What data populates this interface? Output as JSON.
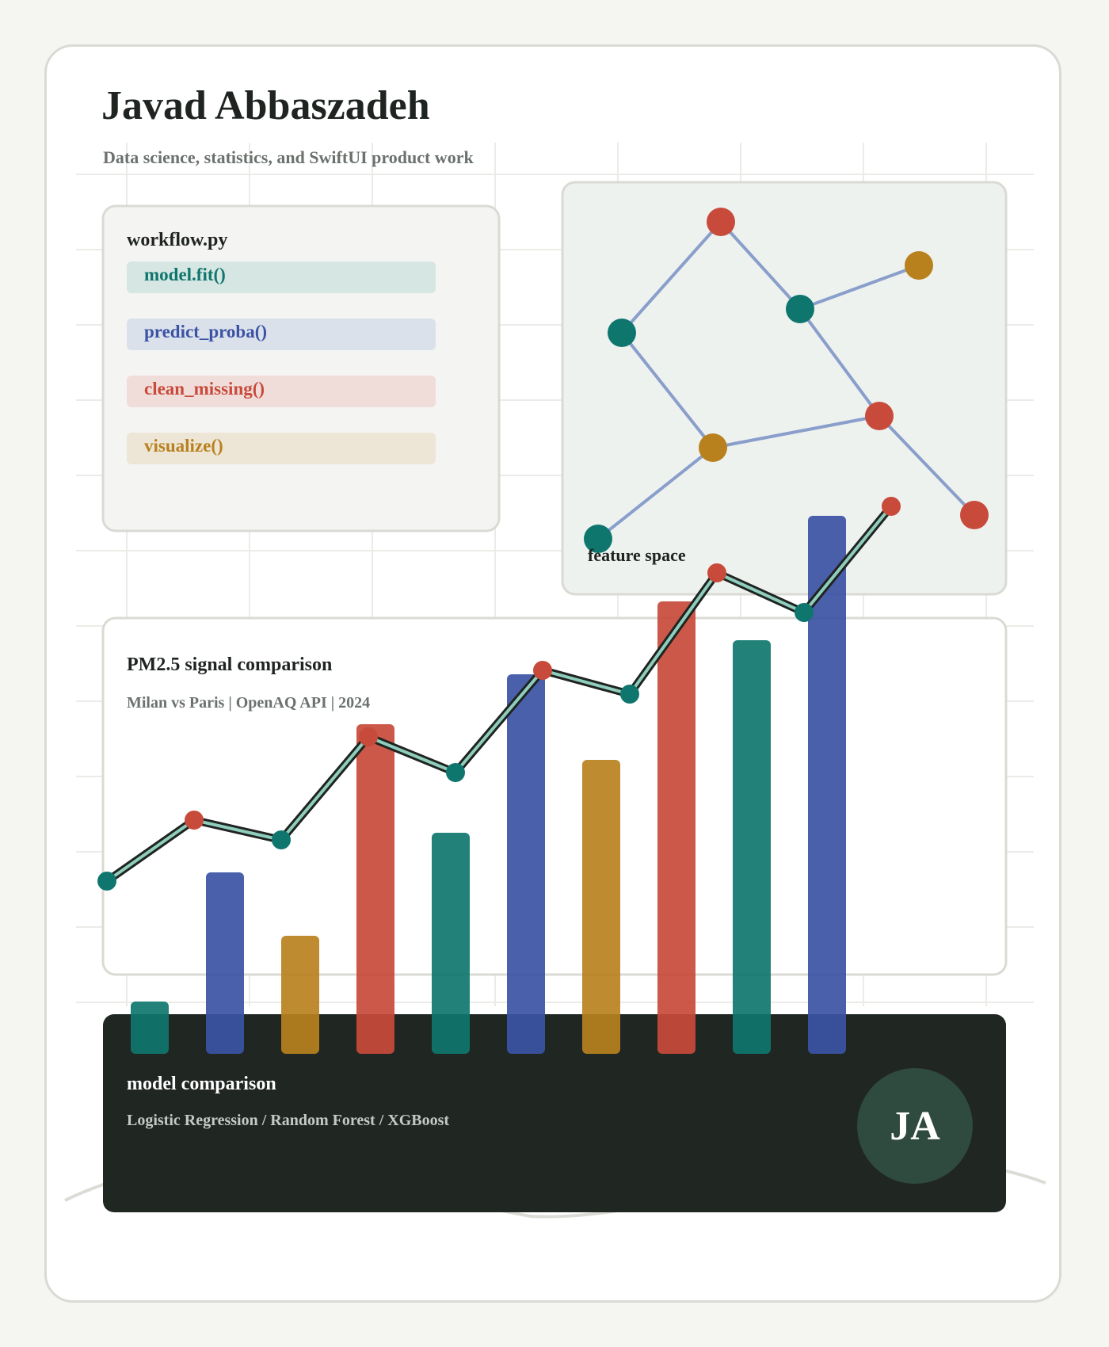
{
  "header": {
    "name": "Javad Abbaszadeh",
    "tagline": "Data science, statistics, and SwiftUI product work"
  },
  "code_card": {
    "filename": "workflow.py",
    "chips": [
      {
        "label": "model.fit()",
        "color": "#0f766e"
      },
      {
        "label": "predict_proba()",
        "color": "#3b53a4"
      },
      {
        "label": "clean_missing()",
        "color": "#c84a3a"
      },
      {
        "label": "visualize()",
        "color": "#b8811e"
      }
    ]
  },
  "network_card": {
    "label": "feature space",
    "node_colors": [
      "#0f766e",
      "#c84a3a",
      "#b8811e"
    ],
    "edge_color": "#8a9ecb"
  },
  "pm_card": {
    "title": "PM2.5 signal comparison",
    "subtitle": "Milan vs Paris | OpenAQ API | 2024"
  },
  "model_card": {
    "title": "model comparison",
    "subtitle": "Logistic Regression / Random Forest / XGBoost",
    "avatar_initials": "JA"
  },
  "colors": {
    "teal": "#0f766e",
    "blue": "#3b53a4",
    "red": "#c84a3a",
    "amber": "#b8811e",
    "dark": "#202622",
    "background": "#f5f5f1"
  },
  "chart_data": {
    "type": "bar",
    "title": "",
    "xlabel": "",
    "ylabel": "",
    "values": [
      6.6,
      22.9,
      14.9,
      41.6,
      27.9,
      47.9,
      37.1,
      57.1,
      52.2,
      67.9
    ],
    "bar_colors": [
      "#0f766e",
      "#3b53a4",
      "#b8811e",
      "#c84a3a",
      "#0f766e",
      "#3b53a4",
      "#b8811e",
      "#c84a3a",
      "#0f766e",
      "#3b53a4"
    ],
    "ylim": [
      0,
      70
    ],
    "series": [
      {
        "type": "line",
        "values": [
          21.8,
          29.5,
          27.0,
          40.0,
          35.5,
          48.4,
          45.4,
          60.7,
          55.7,
          69.1
        ]
      }
    ],
    "grid": true
  }
}
